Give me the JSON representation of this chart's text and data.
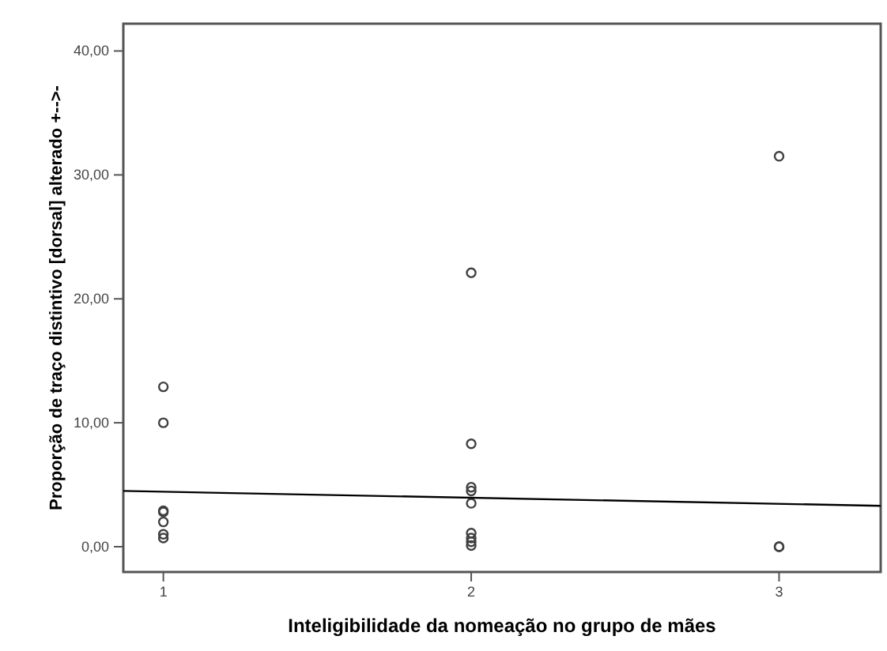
{
  "chart_data": {
    "type": "scatter",
    "xlabel": "Inteligibilidade da nomeação no grupo de mães",
    "ylabel": "Proporção de traço distintivo [dorsal] alterado +-->-",
    "xlim": [
      0.87,
      3.33
    ],
    "ylim": [
      -2.04,
      42.2
    ],
    "xticks": [
      1,
      2,
      3
    ],
    "yticks": [
      {
        "value": 0,
        "label": "0,00"
      },
      {
        "value": 10,
        "label": "10,00"
      },
      {
        "value": 20,
        "label": "20,00"
      },
      {
        "value": 30,
        "label": "30,00"
      },
      {
        "value": 40,
        "label": "40,00"
      }
    ],
    "grid": false,
    "marker": "circle",
    "series": [
      {
        "color": "#404040",
        "x": [
          1,
          1,
          1,
          1,
          1,
          1,
          1,
          2,
          2,
          2,
          2,
          2,
          2,
          2,
          2,
          2,
          3,
          3,
          3
        ],
        "values": [
          12.9,
          10,
          2.9,
          2.8,
          2,
          1,
          0.7,
          22.1,
          8.3,
          4.8,
          4.5,
          3.5,
          1.1,
          0.7,
          0.4,
          0.1,
          31.5,
          0,
          0
        ]
      },
      {
        "type": "line",
        "color": "#000000",
        "x": [
          0.87,
          3.33
        ],
        "values": [
          4.5,
          3.3
        ],
        "marker": "none"
      }
    ]
  }
}
